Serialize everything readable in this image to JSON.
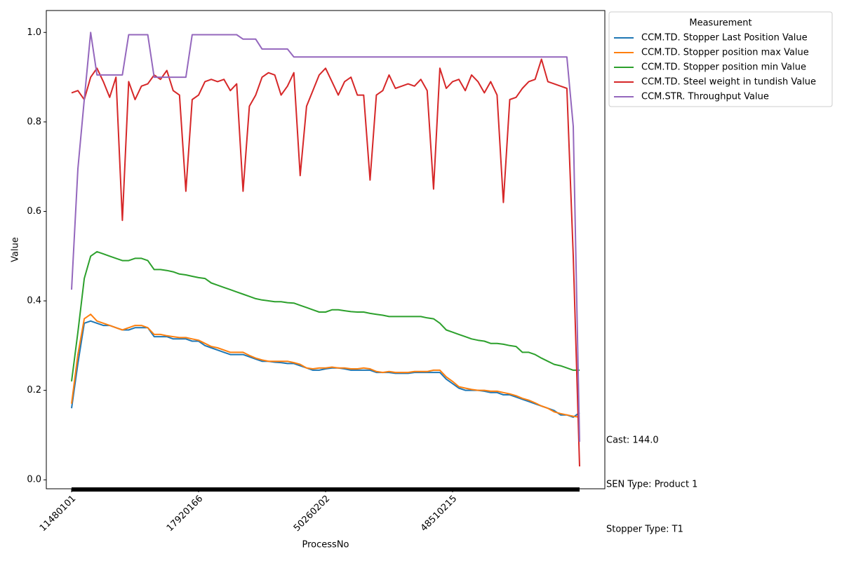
{
  "chart_data": {
    "type": "line",
    "x_label": "ProcessNo",
    "y_label": "Value",
    "legend_title": "Measurement",
    "legend": "upper right outside",
    "annotations": [
      "Cast: 144.0",
      "SEN Type: Product 1",
      "Stopper Type: T1"
    ],
    "categories": [
      "11480101",
      null,
      null,
      null,
      null,
      null,
      null,
      null,
      null,
      null,
      null,
      null,
      null,
      null,
      null,
      null,
      null,
      null,
      null,
      null,
      "17920166",
      null,
      null,
      null,
      null,
      null,
      null,
      null,
      null,
      null,
      null,
      null,
      null,
      null,
      null,
      null,
      null,
      null,
      null,
      null,
      "50260202",
      null,
      null,
      null,
      null,
      null,
      null,
      null,
      null,
      null,
      null,
      null,
      null,
      null,
      null,
      null,
      null,
      null,
      null,
      null,
      "48510215",
      null,
      null,
      null,
      null,
      null,
      null,
      null,
      null,
      null,
      null,
      null,
      null,
      null,
      null,
      null,
      null,
      null,
      null,
      null,
      null
    ],
    "ylim": [
      -0.02,
      1.049
    ],
    "yticks": [
      {
        "value": 0,
        "label": "0.0"
      },
      0.2,
      0.4,
      0.6,
      0.8,
      {
        "value": 1,
        "label": "1.0"
      }
    ],
    "series": [
      {
        "name": "CCM.TD. Stopper Last Position Value",
        "color": "#1f77b4",
        "values": [
          0.16,
          0.26,
          0.35,
          0.355,
          0.35,
          0.345,
          0.345,
          0.34,
          0.335,
          0.335,
          0.34,
          0.34,
          0.34,
          0.32,
          0.32,
          0.32,
          0.315,
          0.315,
          0.315,
          0.31,
          0.31,
          0.3,
          0.295,
          0.29,
          0.285,
          0.28,
          0.28,
          0.28,
          0.275,
          0.27,
          0.265,
          0.265,
          0.263,
          0.262,
          0.26,
          0.26,
          0.255,
          0.25,
          0.245,
          0.245,
          0.248,
          0.25,
          0.25,
          0.248,
          0.245,
          0.245,
          0.245,
          0.245,
          0.24,
          0.24,
          0.24,
          0.238,
          0.238,
          0.238,
          0.24,
          0.24,
          0.24,
          0.24,
          0.24,
          0.225,
          0.215,
          0.205,
          0.2,
          0.2,
          0.2,
          0.198,
          0.195,
          0.195,
          0.19,
          0.19,
          0.185,
          0.18,
          0.175,
          0.17,
          0.165,
          0.16,
          0.155,
          0.145,
          0.145,
          0.14,
          0.15
        ]
      },
      {
        "name": "CCM.TD. Stopper position max Value",
        "color": "#ff7f0e",
        "values": [
          0.17,
          0.28,
          0.36,
          0.37,
          0.355,
          0.35,
          0.345,
          0.34,
          0.335,
          0.34,
          0.345,
          0.345,
          0.34,
          0.325,
          0.325,
          0.322,
          0.32,
          0.318,
          0.318,
          0.315,
          0.312,
          0.305,
          0.298,
          0.295,
          0.29,
          0.285,
          0.285,
          0.285,
          0.278,
          0.272,
          0.268,
          0.265,
          0.265,
          0.265,
          0.265,
          0.262,
          0.258,
          0.25,
          0.248,
          0.25,
          0.25,
          0.252,
          0.25,
          0.25,
          0.248,
          0.248,
          0.25,
          0.248,
          0.242,
          0.24,
          0.242,
          0.24,
          0.24,
          0.24,
          0.242,
          0.242,
          0.242,
          0.245,
          0.245,
          0.23,
          0.22,
          0.208,
          0.205,
          0.202,
          0.2,
          0.2,
          0.198,
          0.198,
          0.195,
          0.192,
          0.188,
          0.182,
          0.178,
          0.172,
          0.165,
          0.16,
          0.152,
          0.148,
          0.145,
          0.142,
          0.14
        ]
      },
      {
        "name": "CCM.TD. Stopper position min Value",
        "color": "#2ca02c",
        "values": [
          0.22,
          0.33,
          0.45,
          0.5,
          0.51,
          0.505,
          0.5,
          0.495,
          0.49,
          0.49,
          0.495,
          0.495,
          0.49,
          0.47,
          0.47,
          0.468,
          0.465,
          0.46,
          0.458,
          0.455,
          0.452,
          0.45,
          0.44,
          0.435,
          0.43,
          0.425,
          0.42,
          0.415,
          0.41,
          0.405,
          0.402,
          0.4,
          0.398,
          0.398,
          0.396,
          0.395,
          0.39,
          0.385,
          0.38,
          0.375,
          0.375,
          0.38,
          0.38,
          0.378,
          0.376,
          0.375,
          0.375,
          0.372,
          0.37,
          0.368,
          0.365,
          0.365,
          0.365,
          0.365,
          0.365,
          0.365,
          0.362,
          0.36,
          0.35,
          0.335,
          0.33,
          0.325,
          0.32,
          0.315,
          0.312,
          0.31,
          0.305,
          0.305,
          0.303,
          0.3,
          0.298,
          0.285,
          0.285,
          0.28,
          0.272,
          0.265,
          0.258,
          0.255,
          0.25,
          0.245,
          0.245
        ]
      },
      {
        "name": "CCM.TD. Steel weight in tundish Value",
        "color": "#d62728",
        "values": [
          0.865,
          0.87,
          0.85,
          0.9,
          0.92,
          0.89,
          0.855,
          0.9,
          0.58,
          0.89,
          0.85,
          0.88,
          0.885,
          0.905,
          0.895,
          0.915,
          0.87,
          0.86,
          0.645,
          0.85,
          0.86,
          0.89,
          0.895,
          0.89,
          0.895,
          0.87,
          0.885,
          0.645,
          0.835,
          0.86,
          0.9,
          0.91,
          0.905,
          0.86,
          0.88,
          0.91,
          0.68,
          0.835,
          0.87,
          0.905,
          0.92,
          0.89,
          0.86,
          0.89,
          0.9,
          0.86,
          0.86,
          0.67,
          0.86,
          0.87,
          0.905,
          0.875,
          0.88,
          0.885,
          0.88,
          0.895,
          0.87,
          0.65,
          0.92,
          0.875,
          0.89,
          0.895,
          0.87,
          0.905,
          0.89,
          0.865,
          0.89,
          0.86,
          0.62,
          0.85,
          0.855,
          0.875,
          0.89,
          0.895,
          0.94,
          0.89,
          0.885,
          0.88,
          0.875,
          0.5,
          0.03
        ]
      },
      {
        "name": "CCM.STR. Throughput Value",
        "color": "#9467bd",
        "values": [
          0.425,
          0.695,
          0.85,
          1.0,
          0.905,
          0.905,
          0.905,
          0.905,
          0.905,
          0.995,
          0.995,
          0.995,
          0.995,
          0.9,
          0.9,
          0.9,
          0.9,
          0.9,
          0.9,
          0.995,
          0.995,
          0.995,
          0.995,
          0.995,
          0.995,
          0.995,
          0.995,
          0.985,
          0.985,
          0.985,
          0.963,
          0.963,
          0.963,
          0.963,
          0.963,
          0.945,
          0.945,
          0.945,
          0.945,
          0.945,
          0.945,
          0.945,
          0.945,
          0.945,
          0.945,
          0.945,
          0.945,
          0.945,
          0.945,
          0.945,
          0.945,
          0.945,
          0.945,
          0.945,
          0.945,
          0.945,
          0.945,
          0.945,
          0.945,
          0.945,
          0.945,
          0.945,
          0.945,
          0.945,
          0.945,
          0.945,
          0.945,
          0.945,
          0.945,
          0.945,
          0.945,
          0.945,
          0.945,
          0.945,
          0.945,
          0.945,
          0.945,
          0.945,
          0.945,
          0.79,
          0.085
        ]
      }
    ]
  }
}
